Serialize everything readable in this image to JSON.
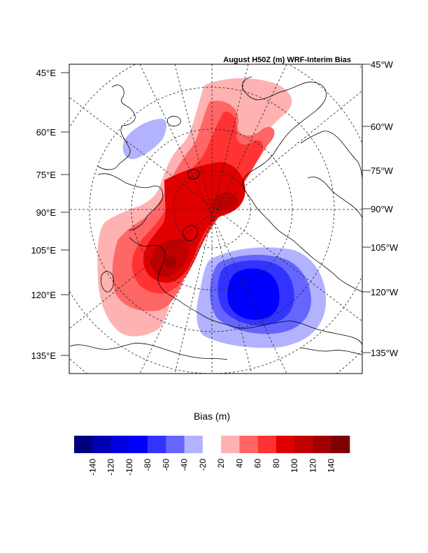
{
  "title": "August H50Z (m) WRF-Interim Bias",
  "left_labels": [
    "45°E",
    "60°E",
    "75°E",
    "90°E",
    "105°E",
    "120°E",
    "135°E"
  ],
  "right_labels": [
    "45°W",
    "60°W",
    "75°W",
    "90°W",
    "105°W",
    "120°W",
    "135°W"
  ],
  "colorbar": {
    "title": "Bias (m)",
    "colors": [
      "#00007f",
      "#0000b2",
      "#0000e0",
      "#0000ff",
      "#3333ff",
      "#6666ff",
      "#b2b2ff",
      "#ffffff",
      "#ffb2b2",
      "#ff6666",
      "#ff3333",
      "#e00000",
      "#c00000",
      "#a00000",
      "#7f0000"
    ],
    "ticks": [
      "-140",
      "-120",
      "-100",
      "-80",
      "-60",
      "-40",
      "-20",
      "20",
      "40",
      "60",
      "80",
      "100",
      "120",
      "140"
    ]
  },
  "colors": {
    "pos_20": "#ffb2b2",
    "pos_40": "#ff6666",
    "pos_60": "#ff3333",
    "pos_80": "#e00000",
    "pos_100": "#c00000",
    "neg_20": "#b2b2ff",
    "neg_40": "#6666ff",
    "neg_60": "#3333ff",
    "neg_80": "#0000ff"
  }
}
